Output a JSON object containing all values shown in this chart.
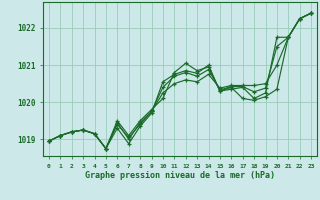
{
  "title": "Graphe pression niveau de la mer (hPa)",
  "background_color": "#cce8e8",
  "grid_color": "#99ccbb",
  "line_color": "#1a6b2a",
  "text_color": "#1a6b2a",
  "xlim": [
    -0.5,
    23.5
  ],
  "ylim": [
    1018.55,
    1022.7
  ],
  "yticks": [
    1019,
    1020,
    1021,
    1022
  ],
  "xtick_labels": [
    "0",
    "1",
    "2",
    "3",
    "4",
    "5",
    "6",
    "7",
    "8",
    "9",
    "10",
    "11",
    "12",
    "13",
    "14",
    "15",
    "16",
    "17",
    "18",
    "19",
    "20",
    "21",
    "22",
    "23"
  ],
  "lines": [
    {
      "x": [
        0,
        1,
        2,
        3,
        4,
        5,
        6,
        7,
        8,
        9,
        10,
        11,
        12,
        13,
        14,
        15,
        16,
        17,
        18,
        19,
        20,
        21,
        22,
        23
      ],
      "y": [
        1018.95,
        1019.1,
        1019.2,
        1019.25,
        1019.15,
        1018.75,
        1019.3,
        1018.88,
        1019.35,
        1019.7,
        1020.55,
        1020.75,
        1020.85,
        1020.78,
        1021.0,
        1020.3,
        1020.35,
        1020.4,
        1020.1,
        1020.25,
        1021.75,
        1021.75,
        1022.25,
        1022.4
      ]
    },
    {
      "x": [
        0,
        1,
        2,
        3,
        4,
        5,
        6,
        7,
        8,
        9,
        10,
        11,
        12,
        13,
        14,
        15,
        16,
        17,
        18,
        19,
        20,
        21,
        22,
        23
      ],
      "y": [
        1018.95,
        1019.1,
        1019.2,
        1019.25,
        1019.15,
        1018.75,
        1019.45,
        1019.0,
        1019.45,
        1019.75,
        1020.25,
        1020.5,
        1020.6,
        1020.55,
        1020.75,
        1020.38,
        1020.45,
        1020.45,
        1020.45,
        1020.5,
        1021.0,
        1021.75,
        1022.25,
        1022.4
      ]
    },
    {
      "x": [
        0,
        1,
        2,
        3,
        4,
        5,
        6,
        7,
        8,
        9,
        10,
        11,
        12,
        13,
        14,
        15,
        16,
        17,
        18,
        19,
        20,
        21,
        22,
        23
      ],
      "y": [
        1018.95,
        1019.1,
        1019.2,
        1019.25,
        1019.15,
        1018.75,
        1019.5,
        1019.1,
        1019.5,
        1019.8,
        1020.1,
        1020.8,
        1021.05,
        1020.85,
        1020.95,
        1020.3,
        1020.4,
        1020.1,
        1020.05,
        1020.15,
        1020.35,
        1021.75,
        1022.25,
        1022.4
      ]
    },
    {
      "x": [
        0,
        1,
        2,
        3,
        4,
        5,
        6,
        7,
        8,
        9,
        10,
        11,
        12,
        13,
        14,
        15,
        16,
        17,
        18,
        19,
        20,
        21,
        22,
        23
      ],
      "y": [
        1018.95,
        1019.1,
        1019.2,
        1019.25,
        1019.15,
        1018.75,
        1019.4,
        1019.05,
        1019.4,
        1019.75,
        1020.4,
        1020.7,
        1020.8,
        1020.7,
        1020.88,
        1020.33,
        1020.42,
        1020.42,
        1020.28,
        1020.38,
        1021.5,
        1021.75,
        1022.25,
        1022.4
      ]
    }
  ]
}
